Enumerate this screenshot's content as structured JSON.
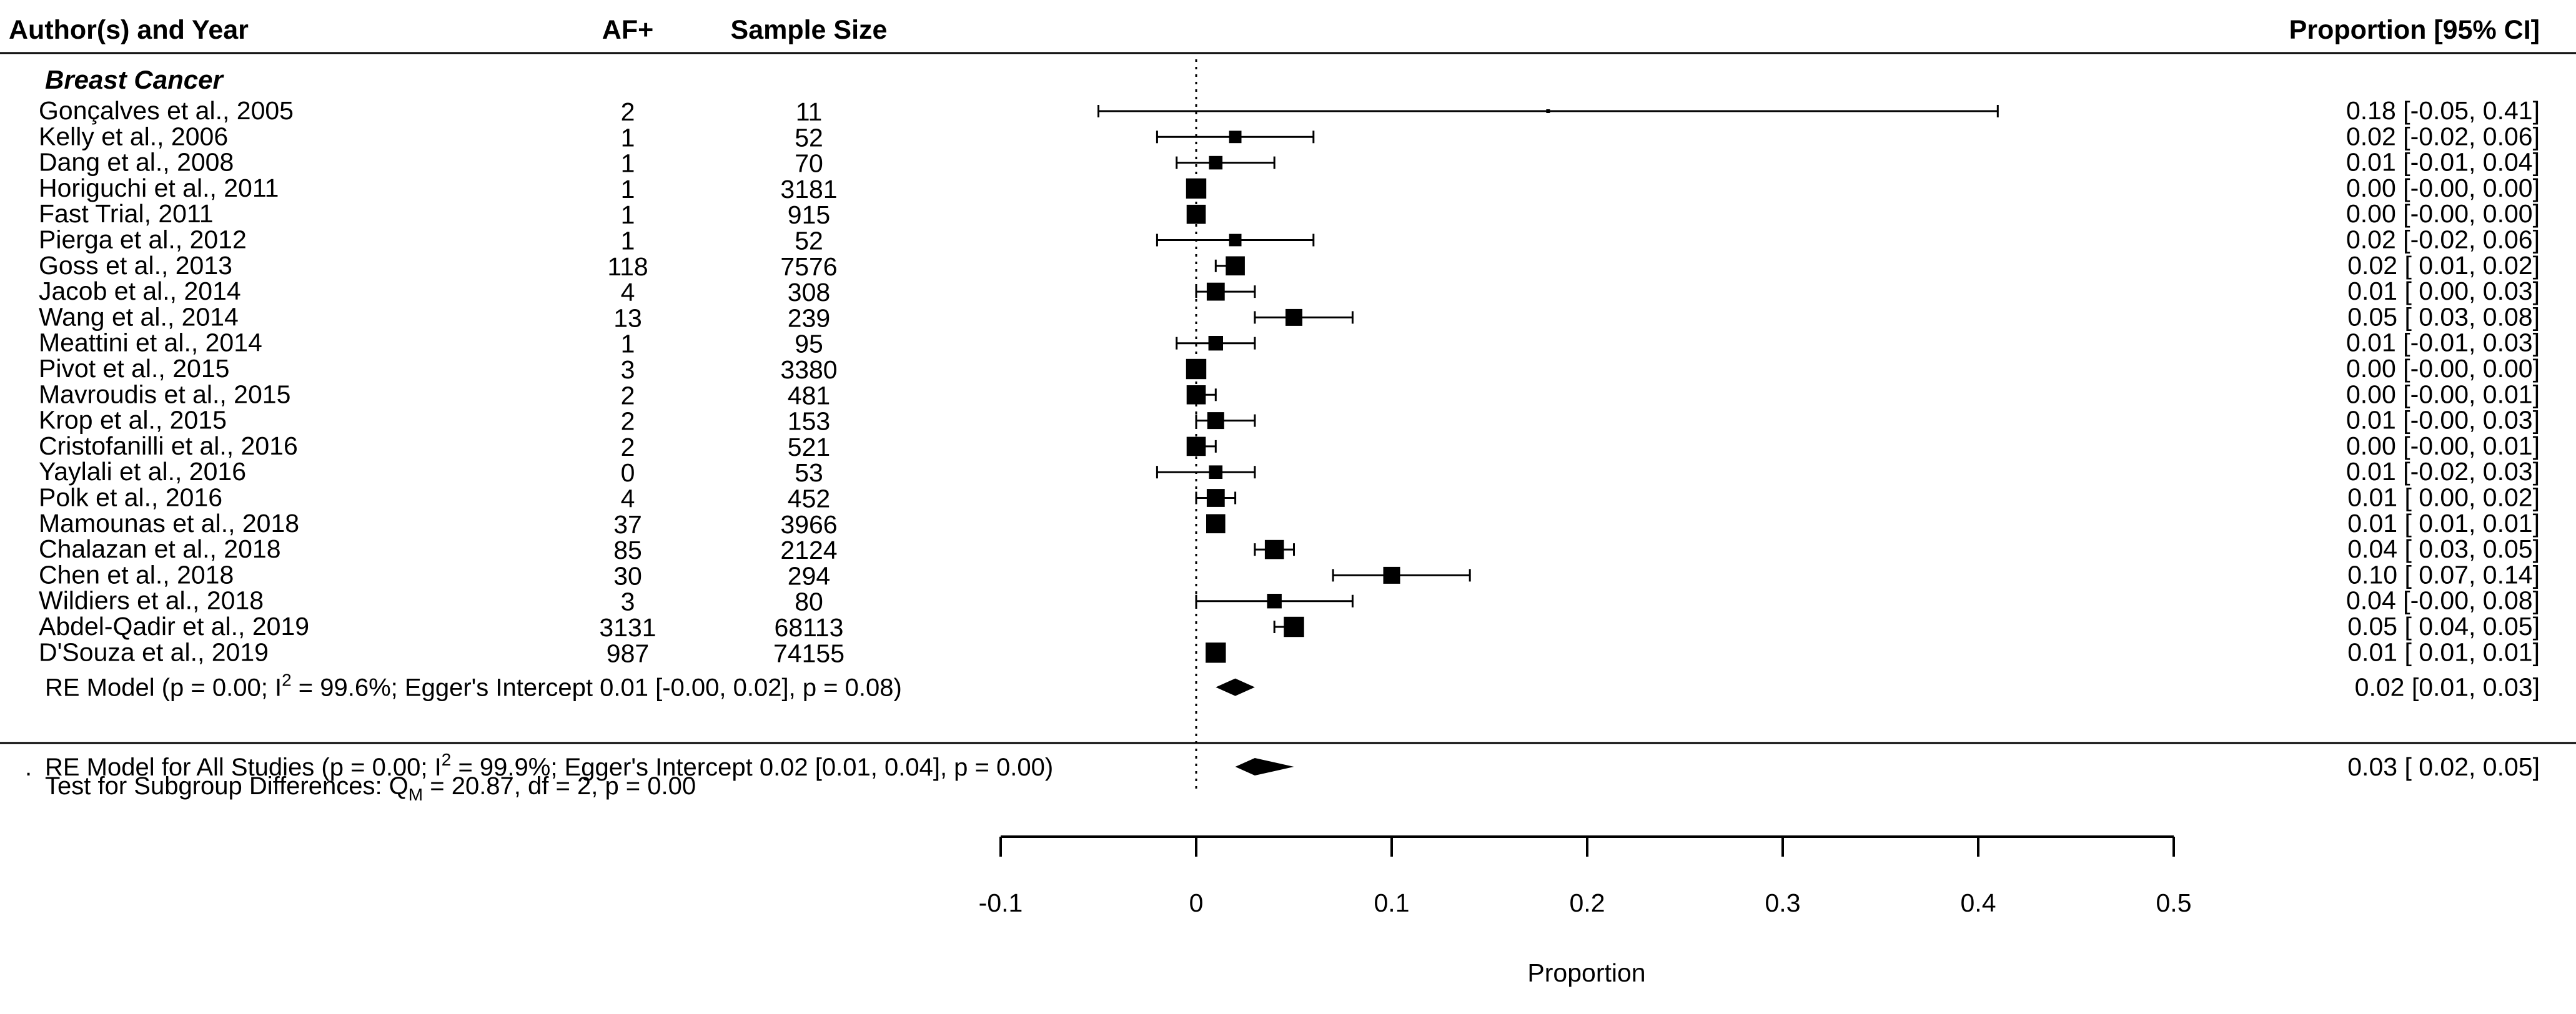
{
  "chart_data": {
    "type": "forest",
    "headers": {
      "study": "Author(s) and Year",
      "events": "AF+",
      "n": "Sample Size",
      "estimate": "Proportion [95% CI]"
    },
    "subgroup": "Breast Cancer",
    "studies": [
      {
        "study": "Gonçalves et al., 2005",
        "af": "2",
        "n": "11",
        "est": 0.18,
        "lo": -0.05,
        "hi": 0.41,
        "ci_text": "0.18 [-0.05, 0.41]",
        "weight": 0.1
      },
      {
        "study": "Kelly et al., 2006",
        "af": "1",
        "n": "52",
        "est": 0.02,
        "lo": -0.02,
        "hi": 0.06,
        "ci_text": "0.02 [-0.02, 0.06]",
        "weight": 0.55
      },
      {
        "study": "Dang et al., 2008",
        "af": "1",
        "n": "70",
        "est": 0.01,
        "lo": -0.01,
        "hi": 0.04,
        "ci_text": "0.01 [-0.01, 0.04]",
        "weight": 0.6
      },
      {
        "study": "Horiguchi et al., 2011",
        "af": "1",
        "n": "3181",
        "est": 0.0,
        "lo": -0.0,
        "hi": 0.0,
        "ci_text": "0.00 [-0.00, 0.00]",
        "weight": 0.9
      },
      {
        "study": "Fast Trial, 2011",
        "af": "1",
        "n": "915",
        "est": 0.0,
        "lo": -0.0,
        "hi": 0.0,
        "ci_text": "0.00 [-0.00, 0.00]",
        "weight": 0.85
      },
      {
        "study": "Pierga et al., 2012",
        "af": "1",
        "n": "52",
        "est": 0.02,
        "lo": -0.02,
        "hi": 0.06,
        "ci_text": "0.02 [-0.02, 0.06]",
        "weight": 0.55
      },
      {
        "study": "Goss et al., 2013",
        "af": "118",
        "n": "7576",
        "est": 0.02,
        "lo": 0.01,
        "hi": 0.02,
        "ci_text": "0.02 [ 0.01, 0.02]",
        "weight": 0.85
      },
      {
        "study": "Jacob et al., 2014",
        "af": "4",
        "n": "308",
        "est": 0.01,
        "lo": 0.0,
        "hi": 0.03,
        "ci_text": "0.01 [ 0.00, 0.03]",
        "weight": 0.8
      },
      {
        "study": "Wang et al., 2014",
        "af": "13",
        "n": "239",
        "est": 0.05,
        "lo": 0.03,
        "hi": 0.08,
        "ci_text": "0.05 [ 0.03, 0.08]",
        "weight": 0.75
      },
      {
        "study": "Meattini et al., 2014",
        "af": "1",
        "n": "95",
        "est": 0.01,
        "lo": -0.01,
        "hi": 0.03,
        "ci_text": "0.01 [-0.01, 0.03]",
        "weight": 0.65
      },
      {
        "study": "Pivot et al., 2015",
        "af": "3",
        "n": "3380",
        "est": 0.0,
        "lo": -0.0,
        "hi": 0.0,
        "ci_text": "0.00 [-0.00, 0.00]",
        "weight": 0.9
      },
      {
        "study": "Mavroudis et al., 2015",
        "af": "2",
        "n": "481",
        "est": 0.0,
        "lo": -0.0,
        "hi": 0.01,
        "ci_text": "0.00 [-0.00, 0.01]",
        "weight": 0.85
      },
      {
        "study": "Krop et al., 2015",
        "af": "2",
        "n": "153",
        "est": 0.01,
        "lo": -0.0,
        "hi": 0.03,
        "ci_text": "0.01 [-0.00, 0.03]",
        "weight": 0.75
      },
      {
        "study": "Cristofanilli et al., 2016",
        "af": "2",
        "n": "521",
        "est": 0.0,
        "lo": -0.0,
        "hi": 0.01,
        "ci_text": "0.00 [-0.00, 0.01]",
        "weight": 0.85
      },
      {
        "study": "Yaylali et al., 2016",
        "af": "0",
        "n": "53",
        "est": 0.01,
        "lo": -0.02,
        "hi": 0.03,
        "ci_text": "0.01 [-0.02, 0.03]",
        "weight": 0.6
      },
      {
        "study": "Polk et al., 2016",
        "af": "4",
        "n": "452",
        "est": 0.01,
        "lo": 0.0,
        "hi": 0.02,
        "ci_text": "0.01 [ 0.00, 0.02]",
        "weight": 0.8
      },
      {
        "study": "Mamounas et al., 2018",
        "af": "37",
        "n": "3966",
        "est": 0.01,
        "lo": 0.01,
        "hi": 0.01,
        "ci_text": "0.01 [ 0.01, 0.01]",
        "weight": 0.85
      },
      {
        "study": "Chalazan et al., 2018",
        "af": "85",
        "n": "2124",
        "est": 0.04,
        "lo": 0.03,
        "hi": 0.05,
        "ci_text": "0.04 [ 0.03, 0.05]",
        "weight": 0.85
      },
      {
        "study": "Chen et al., 2018",
        "af": "30",
        "n": "294",
        "est": 0.1,
        "lo": 0.07,
        "hi": 0.14,
        "ci_text": "0.10 [ 0.07, 0.14]",
        "weight": 0.75
      },
      {
        "study": "Wildiers et al., 2018",
        "af": "3",
        "n": "80",
        "est": 0.04,
        "lo": -0.0,
        "hi": 0.08,
        "ci_text": "0.04 [-0.00, 0.08]",
        "weight": 0.65
      },
      {
        "study": "Abdel-Qadir et al., 2019",
        "af": "3131",
        "n": "68113",
        "est": 0.05,
        "lo": 0.04,
        "hi": 0.05,
        "ci_text": "0.05 [ 0.04, 0.05]",
        "weight": 0.9
      },
      {
        "study": "D'Souza et al., 2019",
        "af": "987",
        "n": "74155",
        "est": 0.01,
        "lo": 0.01,
        "hi": 0.01,
        "ci_text": "0.01 [ 0.01, 0.01]",
        "weight": 0.9
      }
    ],
    "subgroup_model": {
      "label_pre": "RE Model (p = 0.00; I",
      "label_sup": "2",
      "label_post": " = 99.6%; Egger's Intercept 0.01 [-0.00, 0.02], p = 0.08)",
      "est": 0.02,
      "lo": 0.01,
      "hi": 0.03,
      "ci_text": "0.02 [0.01, 0.03]"
    },
    "overall_model": {
      "label_pre": "RE Model for All Studies (p = 0.00; I",
      "label_sup": "2",
      "label_post": " = 99.9%; Egger's Intercept 0.02 [0.01, 0.04], p = 0.00)",
      "est": 0.03,
      "lo": 0.02,
      "hi": 0.05,
      "ci_text": "0.03 [ 0.02, 0.05]"
    },
    "subgroup_test": {
      "pre": "Test for Subgroup Differences: Q",
      "sub": "M",
      "post": " = 20.87, df = 2, p = 0.00"
    },
    "xlabel": "Proportion",
    "xlim": [
      -0.1,
      0.5
    ],
    "xticks": [
      -0.1,
      0,
      0.1,
      0.2,
      0.3,
      0.4,
      0.5
    ],
    "xtick_labels": [
      "-0.1",
      "0",
      "0.1",
      "0.2",
      "0.3",
      "0.4",
      "0.5"
    ],
    "reference_line": 0
  }
}
